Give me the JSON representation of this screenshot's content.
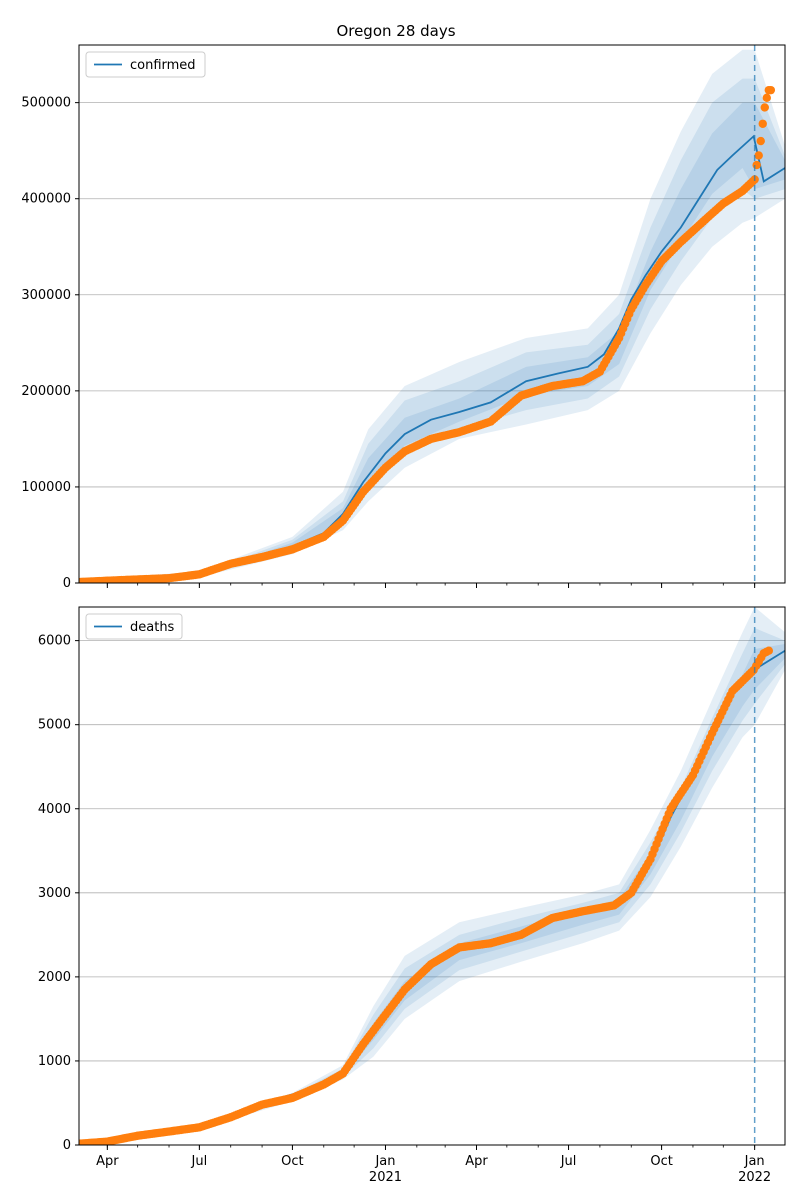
{
  "title": "Oregon 28 days",
  "x_axis": {
    "month_ticks": [
      "Apr",
      "Jul",
      "Oct",
      "Jan",
      "Apr",
      "Jul",
      "Oct",
      "Jan"
    ],
    "year_labels": [
      "2021",
      "2022"
    ],
    "tick_dates": [
      "2020-04-01",
      "2020-07-01",
      "2020-10-01",
      "2021-01-01",
      "2021-04-01",
      "2021-07-01",
      "2021-10-01",
      "2022-01-01"
    ],
    "year_label_dates": [
      "2021-01-01",
      "2022-01-01"
    ],
    "range": [
      "2020-03-04",
      "2022-01-31"
    ],
    "forecast_start": "2022-01-01"
  },
  "colors": {
    "model": "#1f77b4",
    "observed": "#ff7f0e",
    "band": "#1f77b4",
    "grid": "#b0b0b0",
    "forecast_line": "#1f77b4"
  },
  "chart_data": [
    {
      "type": "line",
      "legend": "confirmed",
      "legend_position": "top-left",
      "grid": "y",
      "ylim": [
        0,
        560000
      ],
      "yticks": [
        "0",
        "100000",
        "200000",
        "300000",
        "400000",
        "500000"
      ],
      "ytick_values": [
        0,
        100000,
        200000,
        300000,
        400000,
        500000
      ],
      "series": [
        {
          "name": "confirmed",
          "kind": "model-median",
          "x": [
            "2020-03-04",
            "2020-05-01",
            "2020-07-01",
            "2020-08-15",
            "2020-10-01",
            "2020-11-01",
            "2020-11-20",
            "2020-12-10",
            "2021-01-01",
            "2021-01-20",
            "2021-02-15",
            "2021-03-15",
            "2021-04-15",
            "2021-05-20",
            "2021-06-20",
            "2021-07-20",
            "2021-08-05",
            "2021-08-20",
            "2021-09-01",
            "2021-09-15",
            "2021-10-01",
            "2021-10-20",
            "2021-11-10",
            "2021-11-25",
            "2021-12-10",
            "2021-12-31",
            "2022-01-10",
            "2022-01-31"
          ],
          "y": [
            1000,
            3000,
            8000,
            25000,
            38000,
            52000,
            72000,
            105000,
            135000,
            155000,
            170000,
            178000,
            188000,
            210000,
            218000,
            225000,
            238000,
            265000,
            295000,
            320000,
            345000,
            370000,
            405000,
            430000,
            445000,
            465000,
            418000,
            432000
          ]
        },
        {
          "name": "confirmed-observed",
          "kind": "observed-points",
          "x": [
            "2020-03-04",
            "2020-04-15",
            "2020-06-01",
            "2020-07-01",
            "2020-08-01",
            "2020-09-01",
            "2020-10-01",
            "2020-11-01",
            "2020-11-20",
            "2020-12-10",
            "2021-01-01",
            "2021-01-20",
            "2021-02-15",
            "2021-03-15",
            "2021-04-15",
            "2021-05-15",
            "2021-06-15",
            "2021-07-15",
            "2021-08-01",
            "2021-08-20",
            "2021-09-01",
            "2021-09-15",
            "2021-10-01",
            "2021-10-20",
            "2021-11-15",
            "2021-12-01",
            "2021-12-20",
            "2022-01-01",
            "2022-01-03",
            "2022-01-05",
            "2022-01-07",
            "2022-01-09",
            "2022-01-11",
            "2022-01-13",
            "2022-01-15",
            "2022-01-17"
          ],
          "y": [
            1000,
            3000,
            5000,
            9000,
            20000,
            27000,
            35000,
            48000,
            65000,
            95000,
            120000,
            137000,
            150000,
            157000,
            168000,
            195000,
            205000,
            210000,
            220000,
            255000,
            285000,
            310000,
            335000,
            355000,
            380000,
            395000,
            408000,
            420000,
            435000,
            445000,
            460000,
            478000,
            495000,
            505000,
            513000,
            513000
          ]
        }
      ],
      "bands": [
        {
          "level": "outer",
          "x": [
            "2020-03-04",
            "2020-07-01",
            "2020-10-01",
            "2020-11-20",
            "2020-12-15",
            "2021-01-20",
            "2021-03-15",
            "2021-05-20",
            "2021-07-20",
            "2021-08-20",
            "2021-09-20",
            "2021-10-20",
            "2021-11-20",
            "2021-12-20",
            "2022-01-01",
            "2022-01-31"
          ],
          "lower": [
            0,
            6000,
            30000,
            55000,
            85000,
            120000,
            150000,
            165000,
            180000,
            200000,
            260000,
            310000,
            350000,
            375000,
            380000,
            400000
          ],
          "upper": [
            3000,
            12000,
            48000,
            95000,
            160000,
            205000,
            230000,
            255000,
            265000,
            300000,
            400000,
            470000,
            530000,
            555000,
            555000,
            455000
          ]
        },
        {
          "level": "middle",
          "x": [
            "2020-03-04",
            "2020-07-01",
            "2020-10-01",
            "2020-11-20",
            "2020-12-15",
            "2021-01-20",
            "2021-03-15",
            "2021-05-20",
            "2021-07-20",
            "2021-08-20",
            "2021-09-20",
            "2021-10-20",
            "2021-11-20",
            "2021-12-20",
            "2022-01-01",
            "2022-01-31"
          ],
          "lower": [
            0,
            7000,
            33000,
            60000,
            95000,
            135000,
            160000,
            180000,
            192000,
            215000,
            285000,
            335000,
            380000,
            410000,
            400000,
            410000
          ],
          "upper": [
            2500,
            10000,
            45000,
            85000,
            145000,
            190000,
            210000,
            240000,
            248000,
            280000,
            370000,
            440000,
            500000,
            525000,
            525000,
            445000
          ]
        },
        {
          "level": "inner",
          "x": [
            "2020-03-04",
            "2020-07-01",
            "2020-10-01",
            "2020-11-20",
            "2020-12-15",
            "2021-01-20",
            "2021-03-15",
            "2021-05-20",
            "2021-07-20",
            "2021-08-20",
            "2021-09-20",
            "2021-10-20",
            "2021-11-20",
            "2021-12-20",
            "2022-01-01",
            "2022-01-31"
          ],
          "lower": [
            0,
            7500,
            35000,
            65000,
            100000,
            143000,
            168000,
            195000,
            205000,
            228000,
            305000,
            355000,
            405000,
            432000,
            410000,
            420000
          ],
          "upper": [
            2000,
            9000,
            42000,
            78000,
            130000,
            172000,
            192000,
            225000,
            235000,
            262000,
            345000,
            410000,
            468000,
            500000,
            500000,
            440000
          ]
        }
      ]
    },
    {
      "type": "line",
      "legend": "deaths",
      "legend_position": "top-left",
      "grid": "y",
      "ylim": [
        0,
        6400
      ],
      "yticks": [
        "0",
        "1000",
        "2000",
        "3000",
        "4000",
        "5000",
        "6000"
      ],
      "ytick_values": [
        0,
        1000,
        2000,
        3000,
        4000,
        5000,
        6000
      ],
      "series": [
        {
          "name": "deaths",
          "kind": "model-median",
          "x": [
            "2020-03-04",
            "2020-05-01",
            "2020-07-01",
            "2020-09-01",
            "2020-10-15",
            "2020-11-15",
            "2020-12-01",
            "2020-12-20",
            "2021-01-15",
            "2021-02-15",
            "2021-03-15",
            "2021-04-15",
            "2021-05-15",
            "2021-06-15",
            "2021-07-15",
            "2021-08-15",
            "2021-09-01",
            "2021-09-20",
            "2021-10-10",
            "2021-11-01",
            "2021-11-20",
            "2021-12-10",
            "2021-12-31",
            "2022-01-31"
          ],
          "y": [
            10,
            100,
            220,
            500,
            650,
            800,
            1000,
            1400,
            1800,
            2150,
            2350,
            2420,
            2520,
            2680,
            2770,
            2870,
            3000,
            3350,
            3900,
            4400,
            4900,
            5350,
            5650,
            5880
          ]
        },
        {
          "name": "deaths-observed",
          "kind": "observed-points",
          "x": [
            "2020-03-04",
            "2020-04-01",
            "2020-05-01",
            "2020-06-01",
            "2020-07-01",
            "2020-08-01",
            "2020-09-01",
            "2020-10-01",
            "2020-11-01",
            "2020-11-20",
            "2020-12-10",
            "2021-01-01",
            "2021-01-20",
            "2021-02-15",
            "2021-03-15",
            "2021-04-15",
            "2021-05-15",
            "2021-06-15",
            "2021-07-15",
            "2021-08-15",
            "2021-09-01",
            "2021-09-20",
            "2021-10-10",
            "2021-11-01",
            "2021-11-20",
            "2021-12-10",
            "2021-12-31",
            "2022-01-05",
            "2022-01-10",
            "2022-01-15"
          ],
          "y": [
            15,
            40,
            110,
            160,
            210,
            330,
            480,
            560,
            720,
            850,
            1200,
            1550,
            1850,
            2150,
            2350,
            2400,
            2500,
            2700,
            2780,
            2850,
            3000,
            3400,
            4000,
            4400,
            4900,
            5400,
            5650,
            5750,
            5850,
            5880
          ]
        }
      ],
      "bands": [
        {
          "level": "outer",
          "x": [
            "2020-03-04",
            "2020-07-01",
            "2020-10-01",
            "2020-11-20",
            "2020-12-20",
            "2021-01-20",
            "2021-03-15",
            "2021-05-15",
            "2021-07-15",
            "2021-08-20",
            "2021-09-20",
            "2021-10-20",
            "2021-11-20",
            "2021-12-20",
            "2022-01-01",
            "2022-01-31"
          ],
          "lower": [
            0,
            190,
            520,
            780,
            1050,
            1500,
            1950,
            2180,
            2400,
            2550,
            2950,
            3550,
            4250,
            4850,
            5000,
            5650
          ],
          "upper": [
            40,
            250,
            620,
            950,
            1650,
            2250,
            2650,
            2820,
            2980,
            3100,
            3750,
            4450,
            5300,
            6100,
            6400,
            6100
          ]
        },
        {
          "level": "middle",
          "x": [
            "2020-03-04",
            "2020-07-01",
            "2020-10-01",
            "2020-11-20",
            "2020-12-20",
            "2021-01-20",
            "2021-03-15",
            "2021-05-15",
            "2021-07-15",
            "2021-08-20",
            "2021-09-20",
            "2021-10-20",
            "2021-11-20",
            "2021-12-20",
            "2022-01-01",
            "2022-01-31"
          ],
          "lower": [
            0,
            200,
            540,
            810,
            1150,
            1620,
            2080,
            2300,
            2520,
            2650,
            3100,
            3720,
            4450,
            5050,
            5250,
            5720
          ],
          "upper": [
            30,
            240,
            600,
            910,
            1550,
            2100,
            2500,
            2700,
            2880,
            3000,
            3600,
            4250,
            5080,
            5850,
            6150,
            6000
          ]
        },
        {
          "level": "inner",
          "x": [
            "2020-03-04",
            "2020-07-01",
            "2020-10-01",
            "2020-11-20",
            "2020-12-20",
            "2021-01-20",
            "2021-03-15",
            "2021-05-15",
            "2021-07-15",
            "2021-08-20",
            "2021-09-20",
            "2021-10-20",
            "2021-11-20",
            "2021-12-20",
            "2022-01-01",
            "2022-01-31"
          ],
          "lower": [
            5,
            210,
            555,
            830,
            1250,
            1720,
            2200,
            2400,
            2620,
            2740,
            3220,
            3860,
            4620,
            5220,
            5420,
            5790
          ],
          "upper": [
            25,
            230,
            585,
            880,
            1450,
            1950,
            2400,
            2600,
            2800,
            2930,
            3470,
            4100,
            4880,
            5600,
            5900,
            5960
          ]
        }
      ]
    }
  ]
}
